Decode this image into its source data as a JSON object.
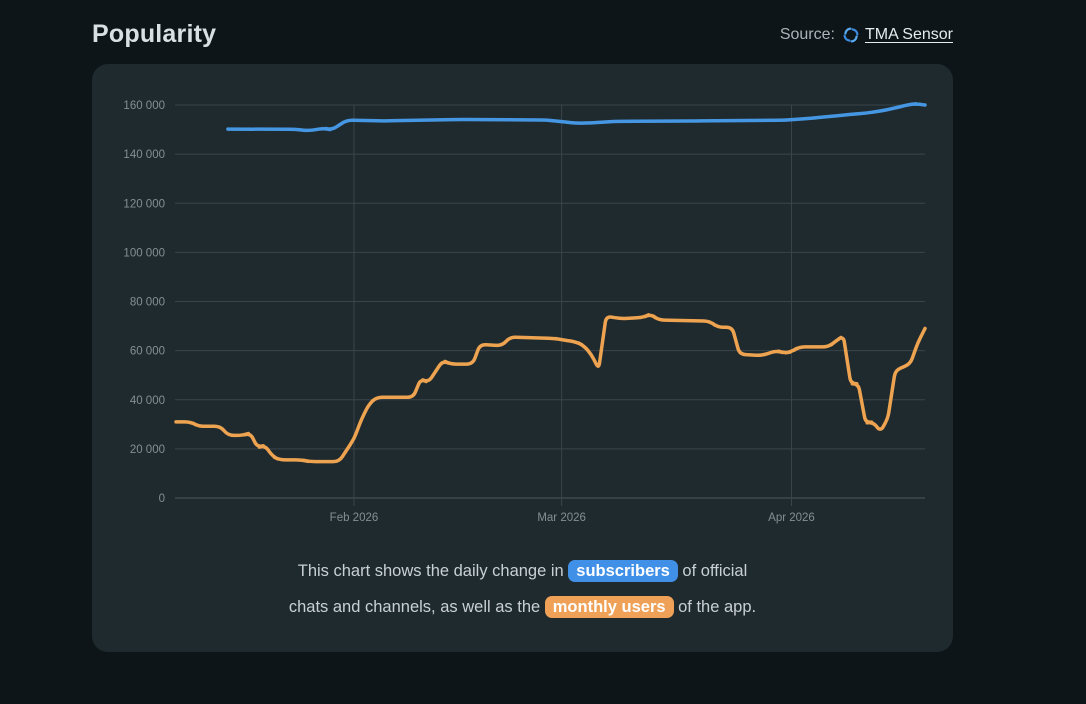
{
  "header": {
    "title": "Popularity",
    "source_label": "Source:",
    "source_link": "TMA Sensor",
    "source_icon": "pinwheel-logo-icon"
  },
  "caption": {
    "line1_pre": "This chart shows the daily change in ",
    "line1_highlight": "subscribers",
    "line1_post": " of official",
    "line2_pre": "chats and channels, as well as the ",
    "line2_highlight": "monthly users",
    "line2_post": " of the app."
  },
  "colors": {
    "page_bg": "#0d1519",
    "card_bg": "#1f2a2f",
    "grid": "#3a444a",
    "axis": "#4d575b",
    "tick_label": "#848e94",
    "subscribers_blue": "#4697e3",
    "monthly_users_orange": "#eda350",
    "pill_blue": "#4190e8",
    "pill_orange": "#eea157"
  },
  "chart_data": {
    "type": "line",
    "title": "",
    "xlabel": "",
    "ylabel": "",
    "grid": true,
    "legend_position": "none",
    "x_domain": [
      "2026-01-08",
      "2026-04-19"
    ],
    "x_axis": {
      "ticks": [
        {
          "date": "2026-02-01",
          "label": "Feb 2026"
        },
        {
          "date": "2026-03-01",
          "label": "Mar 2026"
        },
        {
          "date": "2026-04-01",
          "label": "Apr 2026"
        }
      ]
    },
    "y_axis": {
      "min": 0,
      "max": 160000,
      "step": 20000,
      "tick_labels": [
        "0",
        "20 000",
        "40 000",
        "60 000",
        "80 000",
        "100 000",
        "120 000",
        "140 000",
        "160 000"
      ]
    },
    "series": [
      {
        "name": "subscribers",
        "color": "#4697e3",
        "points": [
          [
            "2026-01-15",
            150200
          ],
          [
            "2026-01-24",
            150100
          ],
          [
            "2026-01-26",
            149500
          ],
          [
            "2026-01-28",
            150600
          ],
          [
            "2026-01-29",
            149800
          ],
          [
            "2026-01-31",
            153800
          ],
          [
            "2026-02-05",
            153500
          ],
          [
            "2026-02-15",
            154100
          ],
          [
            "2026-02-27",
            153900
          ],
          [
            "2026-03-01",
            153200
          ],
          [
            "2026-03-03",
            152600
          ],
          [
            "2026-03-05",
            152700
          ],
          [
            "2026-03-08",
            153300
          ],
          [
            "2026-03-19",
            153500
          ],
          [
            "2026-03-31",
            153800
          ],
          [
            "2026-04-01",
            154000
          ],
          [
            "2026-04-04",
            154700
          ],
          [
            "2026-04-08",
            155900
          ],
          [
            "2026-04-11",
            156700
          ],
          [
            "2026-04-13",
            157500
          ],
          [
            "2026-04-15",
            158800
          ],
          [
            "2026-04-17",
            160300
          ],
          [
            "2026-04-18",
            160500
          ],
          [
            "2026-04-19",
            160000
          ]
        ]
      },
      {
        "name": "monthly users",
        "color": "#eda350",
        "points": [
          [
            "2026-01-08",
            31000
          ],
          [
            "2026-01-10",
            31000
          ],
          [
            "2026-01-11",
            29200
          ],
          [
            "2026-01-14",
            29200
          ],
          [
            "2026-01-15",
            25500
          ],
          [
            "2026-01-17",
            25500
          ],
          [
            "2026-01-18",
            26500
          ],
          [
            "2026-01-19",
            20500
          ],
          [
            "2026-01-20",
            21500
          ],
          [
            "2026-01-21",
            17000
          ],
          [
            "2026-01-22",
            15500
          ],
          [
            "2026-01-25",
            15500
          ],
          [
            "2026-01-26",
            14800
          ],
          [
            "2026-01-30",
            14800
          ],
          [
            "2026-01-31",
            19500
          ],
          [
            "2026-02-01",
            24000
          ],
          [
            "2026-02-02",
            32000
          ],
          [
            "2026-02-03",
            38000
          ],
          [
            "2026-02-04",
            41000
          ],
          [
            "2026-02-09",
            41000
          ],
          [
            "2026-02-10",
            48500
          ],
          [
            "2026-02-11",
            47000
          ],
          [
            "2026-02-13",
            56000
          ],
          [
            "2026-02-14",
            54500
          ],
          [
            "2026-02-17",
            54500
          ],
          [
            "2026-02-18",
            62500
          ],
          [
            "2026-02-21",
            62000
          ],
          [
            "2026-02-22",
            65500
          ],
          [
            "2026-02-28",
            65000
          ],
          [
            "2026-03-01",
            64500
          ],
          [
            "2026-03-03",
            63500
          ],
          [
            "2026-03-04",
            62000
          ],
          [
            "2026-03-05",
            58500
          ],
          [
            "2026-03-06",
            52500
          ],
          [
            "2026-03-07",
            74000
          ],
          [
            "2026-03-09",
            73000
          ],
          [
            "2026-03-12",
            73500
          ],
          [
            "2026-03-13",
            75000
          ],
          [
            "2026-03-14",
            72500
          ],
          [
            "2026-03-21",
            72000
          ],
          [
            "2026-03-22",
            69500
          ],
          [
            "2026-03-24",
            69500
          ],
          [
            "2026-03-25",
            58500
          ],
          [
            "2026-03-28",
            58000
          ],
          [
            "2026-03-30",
            60000
          ],
          [
            "2026-03-31",
            59000
          ],
          [
            "2026-04-01",
            59500
          ],
          [
            "2026-04-02",
            61500
          ],
          [
            "2026-04-06",
            61500
          ],
          [
            "2026-04-07",
            64000
          ],
          [
            "2026-04-08",
            66000
          ],
          [
            "2026-04-09",
            46500
          ],
          [
            "2026-04-10",
            46500
          ],
          [
            "2026-04-11",
            30500
          ],
          [
            "2026-04-12",
            31000
          ],
          [
            "2026-04-13",
            27000
          ],
          [
            "2026-04-14",
            32500
          ],
          [
            "2026-04-15",
            52000
          ],
          [
            "2026-04-17",
            54500
          ],
          [
            "2026-04-18",
            63000
          ],
          [
            "2026-04-19",
            69000
          ]
        ]
      }
    ]
  }
}
